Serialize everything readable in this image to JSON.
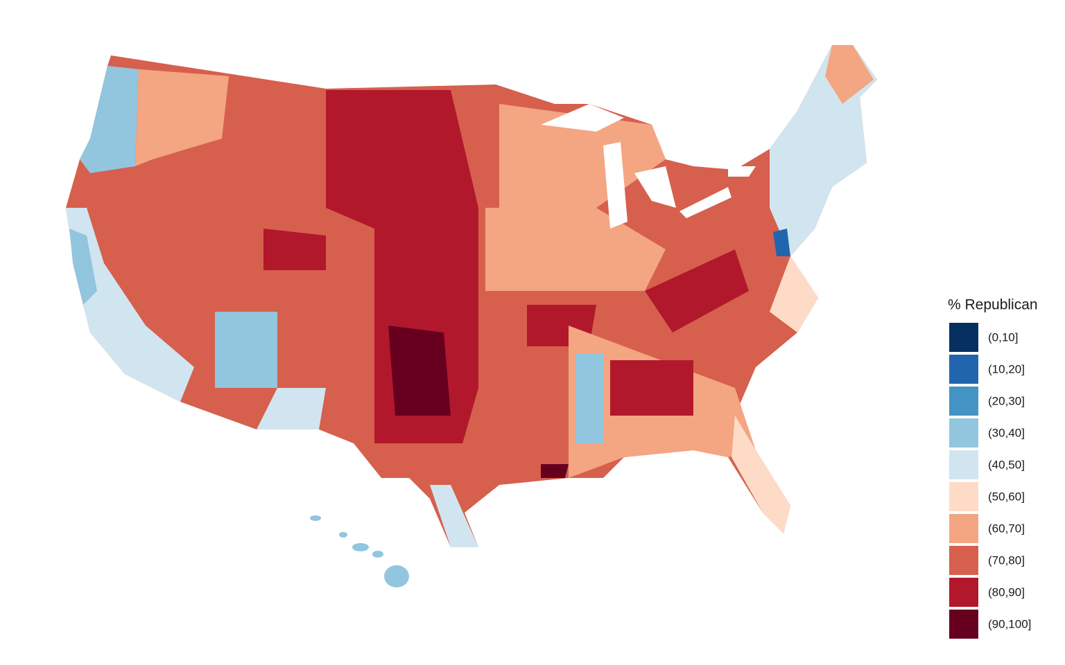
{
  "legend": {
    "title": "% Republican",
    "items": [
      {
        "label": "(0,10]",
        "color": "#053061"
      },
      {
        "label": "(10,20]",
        "color": "#2166ac"
      },
      {
        "label": "(20,30]",
        "color": "#4393c3"
      },
      {
        "label": "(30,40]",
        "color": "#92c5de"
      },
      {
        "label": "(40,50]",
        "color": "#d1e5f0"
      },
      {
        "label": "(50,60]",
        "color": "#fddbc7"
      },
      {
        "label": "(60,70]",
        "color": "#f4a582"
      },
      {
        "label": "(70,80]",
        "color": "#d6604d"
      },
      {
        "label": "(80,90]",
        "color": "#b2182b"
      },
      {
        "label": "(90,100]",
        "color": "#67001f"
      }
    ]
  }
}
